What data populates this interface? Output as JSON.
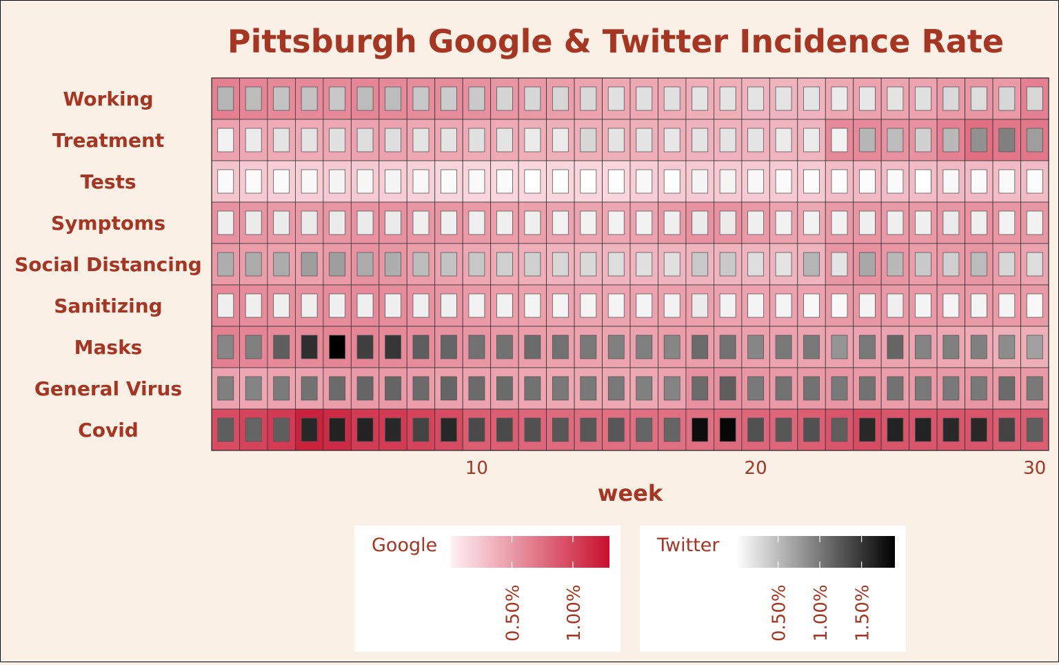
{
  "chart_data": {
    "type": "heatmap",
    "title": "Pittsburgh Google & Twitter Incidence Rate",
    "xlabel": "week",
    "ylabel": "",
    "x_ticks": [
      10,
      20,
      30
    ],
    "xlim": [
      1,
      30
    ],
    "weeks": [
      1,
      2,
      3,
      4,
      5,
      6,
      7,
      8,
      9,
      10,
      11,
      12,
      13,
      14,
      15,
      16,
      17,
      18,
      19,
      20,
      21,
      22,
      23,
      24,
      25,
      26,
      27,
      28,
      29,
      30
    ],
    "rows": [
      "Working",
      "Treatment",
      "Tests",
      "Symptoms",
      "Social Distancing",
      "Sanitizing",
      "Masks",
      "General Virus",
      "Covid"
    ],
    "google_scale_max": 1.3,
    "twitter_scale_max": 1.9,
    "google": [
      [
        0.65,
        0.62,
        0.6,
        0.6,
        0.6,
        0.62,
        0.6,
        0.58,
        0.58,
        0.56,
        0.52,
        0.5,
        0.48,
        0.45,
        0.42,
        0.42,
        0.4,
        0.38,
        0.38,
        0.36,
        0.35,
        0.35,
        0.42,
        0.45,
        0.44,
        0.45,
        0.5,
        0.52,
        0.5,
        0.65
      ],
      [
        0.45,
        0.42,
        0.4,
        0.4,
        0.42,
        0.45,
        0.45,
        0.42,
        0.42,
        0.4,
        0.4,
        0.38,
        0.38,
        0.38,
        0.38,
        0.38,
        0.38,
        0.36,
        0.36,
        0.36,
        0.35,
        0.35,
        0.6,
        0.6,
        0.55,
        0.55,
        0.65,
        0.75,
        0.7,
        0.7
      ],
      [
        0.25,
        0.22,
        0.2,
        0.2,
        0.22,
        0.22,
        0.2,
        0.18,
        0.16,
        0.15,
        0.15,
        0.15,
        0.15,
        0.15,
        0.15,
        0.2,
        0.22,
        0.22,
        0.22,
        0.22,
        0.22,
        0.22,
        0.3,
        0.32,
        0.3,
        0.3,
        0.32,
        0.32,
        0.3,
        0.3
      ],
      [
        0.55,
        0.52,
        0.5,
        0.5,
        0.52,
        0.55,
        0.55,
        0.52,
        0.52,
        0.5,
        0.48,
        0.46,
        0.45,
        0.44,
        0.43,
        0.45,
        0.5,
        0.55,
        0.55,
        0.5,
        0.45,
        0.42,
        0.5,
        0.52,
        0.5,
        0.5,
        0.52,
        0.55,
        0.52,
        0.52
      ],
      [
        0.5,
        0.48,
        0.46,
        0.46,
        0.5,
        0.55,
        0.52,
        0.48,
        0.45,
        0.42,
        0.4,
        0.38,
        0.36,
        0.35,
        0.35,
        0.35,
        0.35,
        0.35,
        0.35,
        0.35,
        0.35,
        0.35,
        0.52,
        0.55,
        0.52,
        0.48,
        0.5,
        0.52,
        0.48,
        0.45
      ],
      [
        0.6,
        0.58,
        0.56,
        0.56,
        0.58,
        0.6,
        0.58,
        0.55,
        0.52,
        0.5,
        0.48,
        0.46,
        0.45,
        0.44,
        0.44,
        0.45,
        0.46,
        0.46,
        0.45,
        0.45,
        0.45,
        0.45,
        0.5,
        0.52,
        0.5,
        0.5,
        0.5,
        0.5,
        0.5,
        0.5
      ],
      [
        0.65,
        0.62,
        0.6,
        0.6,
        0.62,
        0.62,
        0.6,
        0.58,
        0.55,
        0.52,
        0.5,
        0.48,
        0.46,
        0.45,
        0.44,
        0.45,
        0.48,
        0.48,
        0.47,
        0.46,
        0.45,
        0.44,
        0.45,
        0.45,
        0.44,
        0.44,
        0.42,
        0.4,
        0.38,
        0.38
      ],
      [
        0.45,
        0.43,
        0.45,
        0.45,
        0.48,
        0.5,
        0.5,
        0.48,
        0.46,
        0.45,
        0.44,
        0.43,
        0.42,
        0.42,
        0.42,
        0.42,
        0.45,
        0.55,
        0.55,
        0.52,
        0.5,
        0.5,
        0.52,
        0.5,
        0.48,
        0.5,
        0.5,
        0.52,
        0.5,
        0.5
      ],
      [
        0.95,
        1.0,
        1.05,
        1.2,
        1.15,
        1.05,
        1.05,
        1.0,
        0.95,
        0.85,
        0.85,
        0.8,
        0.78,
        0.76,
        0.75,
        0.75,
        0.75,
        0.75,
        0.78,
        0.8,
        0.8,
        0.85,
        0.9,
        0.95,
        0.9,
        0.9,
        0.9,
        0.9,
        0.85,
        0.85
      ]
    ],
    "twitter": [
      [
        0.55,
        0.5,
        0.45,
        0.45,
        0.42,
        0.5,
        0.5,
        0.42,
        0.38,
        0.4,
        0.32,
        0.3,
        0.3,
        0.28,
        0.22,
        0.22,
        0.22,
        0.2,
        0.2,
        0.2,
        0.2,
        0.2,
        0.15,
        0.18,
        0.2,
        0.22,
        0.28,
        0.25,
        0.3,
        0.3
      ],
      [
        0.1,
        0.15,
        0.2,
        0.2,
        0.22,
        0.25,
        0.25,
        0.2,
        0.2,
        0.22,
        0.2,
        0.15,
        0.15,
        0.3,
        0.2,
        0.2,
        0.18,
        0.2,
        0.2,
        0.2,
        0.15,
        0.15,
        0.1,
        0.55,
        0.5,
        0.35,
        0.52,
        0.82,
        0.95,
        0.72
      ],
      [
        0.04,
        0.04,
        0.04,
        0.05,
        0.08,
        0.06,
        0.08,
        0.05,
        0.04,
        0.04,
        0.03,
        0.0,
        0.0,
        0.0,
        0.0,
        0.05,
        0.0,
        0.08,
        0.08,
        0.05,
        0.03,
        0.02,
        0.02,
        0.02,
        0.03,
        0.0,
        0.05,
        0.04,
        0.04,
        0.02
      ],
      [
        0.12,
        0.15,
        0.15,
        0.15,
        0.15,
        0.15,
        0.15,
        0.12,
        0.12,
        0.12,
        0.12,
        0.12,
        0.1,
        0.1,
        0.1,
        0.1,
        0.12,
        0.15,
        0.15,
        0.12,
        0.1,
        0.1,
        0.1,
        0.12,
        0.12,
        0.12,
        0.15,
        0.12,
        0.1,
        0.1
      ],
      [
        0.6,
        0.62,
        0.62,
        0.72,
        0.72,
        0.62,
        0.6,
        0.5,
        0.45,
        0.42,
        0.35,
        0.35,
        0.3,
        0.28,
        0.25,
        0.22,
        0.22,
        0.4,
        0.4,
        0.25,
        0.2,
        0.55,
        0.2,
        0.65,
        0.52,
        0.4,
        0.35,
        0.5,
        0.3,
        0.25
      ],
      [
        0.12,
        0.12,
        0.12,
        0.12,
        0.12,
        0.12,
        0.12,
        0.12,
        0.12,
        0.1,
        0.1,
        0.08,
        0.08,
        0.08,
        0.08,
        0.08,
        0.1,
        0.15,
        0.1,
        0.08,
        0.08,
        0.05,
        0.05,
        0.08,
        0.12,
        0.08,
        0.08,
        0.08,
        0.08,
        0.05
      ],
      [
        0.9,
        0.95,
        1.2,
        1.55,
        1.9,
        1.42,
        1.5,
        1.2,
        1.15,
        1.05,
        1.05,
        1.1,
        1.05,
        1.0,
        0.95,
        0.95,
        0.9,
        1.1,
        1.05,
        0.9,
        1.0,
        1.0,
        0.8,
        1.0,
        1.15,
        0.92,
        0.95,
        0.95,
        0.85,
        0.7
      ],
      [
        0.95,
        0.92,
        0.98,
        1.05,
        1.1,
        1.15,
        1.15,
        1.1,
        1.15,
        1.1,
        1.1,
        1.05,
        1.0,
        1.0,
        1.0,
        0.95,
        0.92,
        1.1,
        1.2,
        1.0,
        1.05,
        1.05,
        1.0,
        1.05,
        1.05,
        1.0,
        1.0,
        1.0,
        1.1,
        1.0
      ],
      [
        1.2,
        1.15,
        1.2,
        1.6,
        1.65,
        1.65,
        1.6,
        1.4,
        1.6,
        1.35,
        1.35,
        1.3,
        1.25,
        1.25,
        1.25,
        1.15,
        1.15,
        1.8,
        1.85,
        1.3,
        1.25,
        1.3,
        1.2,
        1.6,
        1.65,
        1.65,
        1.6,
        1.6,
        1.4,
        1.2
      ]
    ],
    "legends": [
      {
        "title": "Google",
        "tick_labels": [
          "0.50%",
          "1.00%"
        ],
        "tick_values": [
          0.5,
          1.0
        ],
        "color_low": "#fff0f3",
        "color_high": "#c8102e"
      },
      {
        "title": "Twitter",
        "tick_labels": [
          "0.50%",
          "1.00%",
          "1.50%"
        ],
        "tick_values": [
          0.5,
          1.0,
          1.5
        ],
        "color_low": "#ffffff",
        "color_high": "#000000"
      }
    ]
  },
  "colors": {
    "background": "#faf0e6",
    "text": "#a63522",
    "google_low": "#fff0f3",
    "google_high": "#c8102e",
    "twitter_low": "#ffffff",
    "twitter_high": "#000000"
  }
}
